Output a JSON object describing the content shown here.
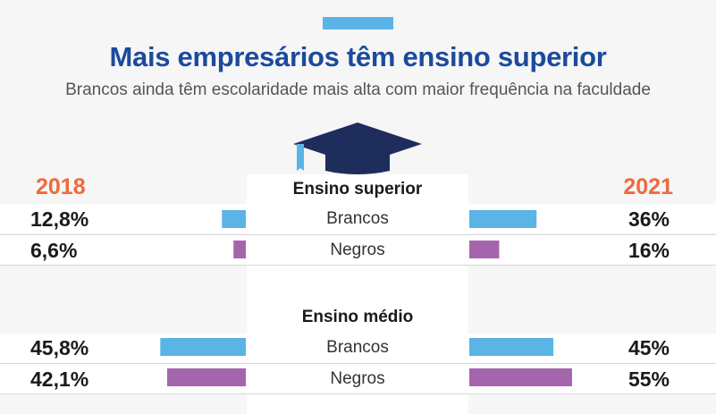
{
  "colors": {
    "title": "#1c4a9c",
    "year": "#ef6a3a",
    "brancos": "#5ab4e5",
    "negros": "#a565ad",
    "cap": "#1f2d5c"
  },
  "header": {
    "title": "Mais empresários têm ensino superior",
    "subtitle": "Brancos ainda têm escolaridade mais alta com maior frequência na faculdade"
  },
  "icons": {
    "cap": "graduation-cap-icon"
  },
  "chart_data": {
    "type": "bar",
    "layout": "butterfly",
    "years": {
      "left": "2018",
      "right": "2021"
    },
    "groups": [
      {
        "name": "Ensino superior",
        "rows": [
          {
            "category": "Brancos",
            "left_value": 12.8,
            "left_label": "12,8%",
            "right_value": 36,
            "right_label": "36%",
            "color": "#5ab4e5"
          },
          {
            "category": "Negros",
            "left_value": 6.6,
            "left_label": "6,6%",
            "right_value": 16,
            "right_label": "16%",
            "color": "#a565ad"
          }
        ]
      },
      {
        "name": "Ensino médio",
        "rows": [
          {
            "category": "Brancos",
            "left_value": 45.8,
            "left_label": "45,8%",
            "right_value": 45,
            "right_label": "45%",
            "color": "#5ab4e5"
          },
          {
            "category": "Negros",
            "left_value": 42.1,
            "left_label": "42,1%",
            "right_value": 55,
            "right_label": "55%",
            "color": "#a565ad"
          }
        ]
      }
    ]
  }
}
